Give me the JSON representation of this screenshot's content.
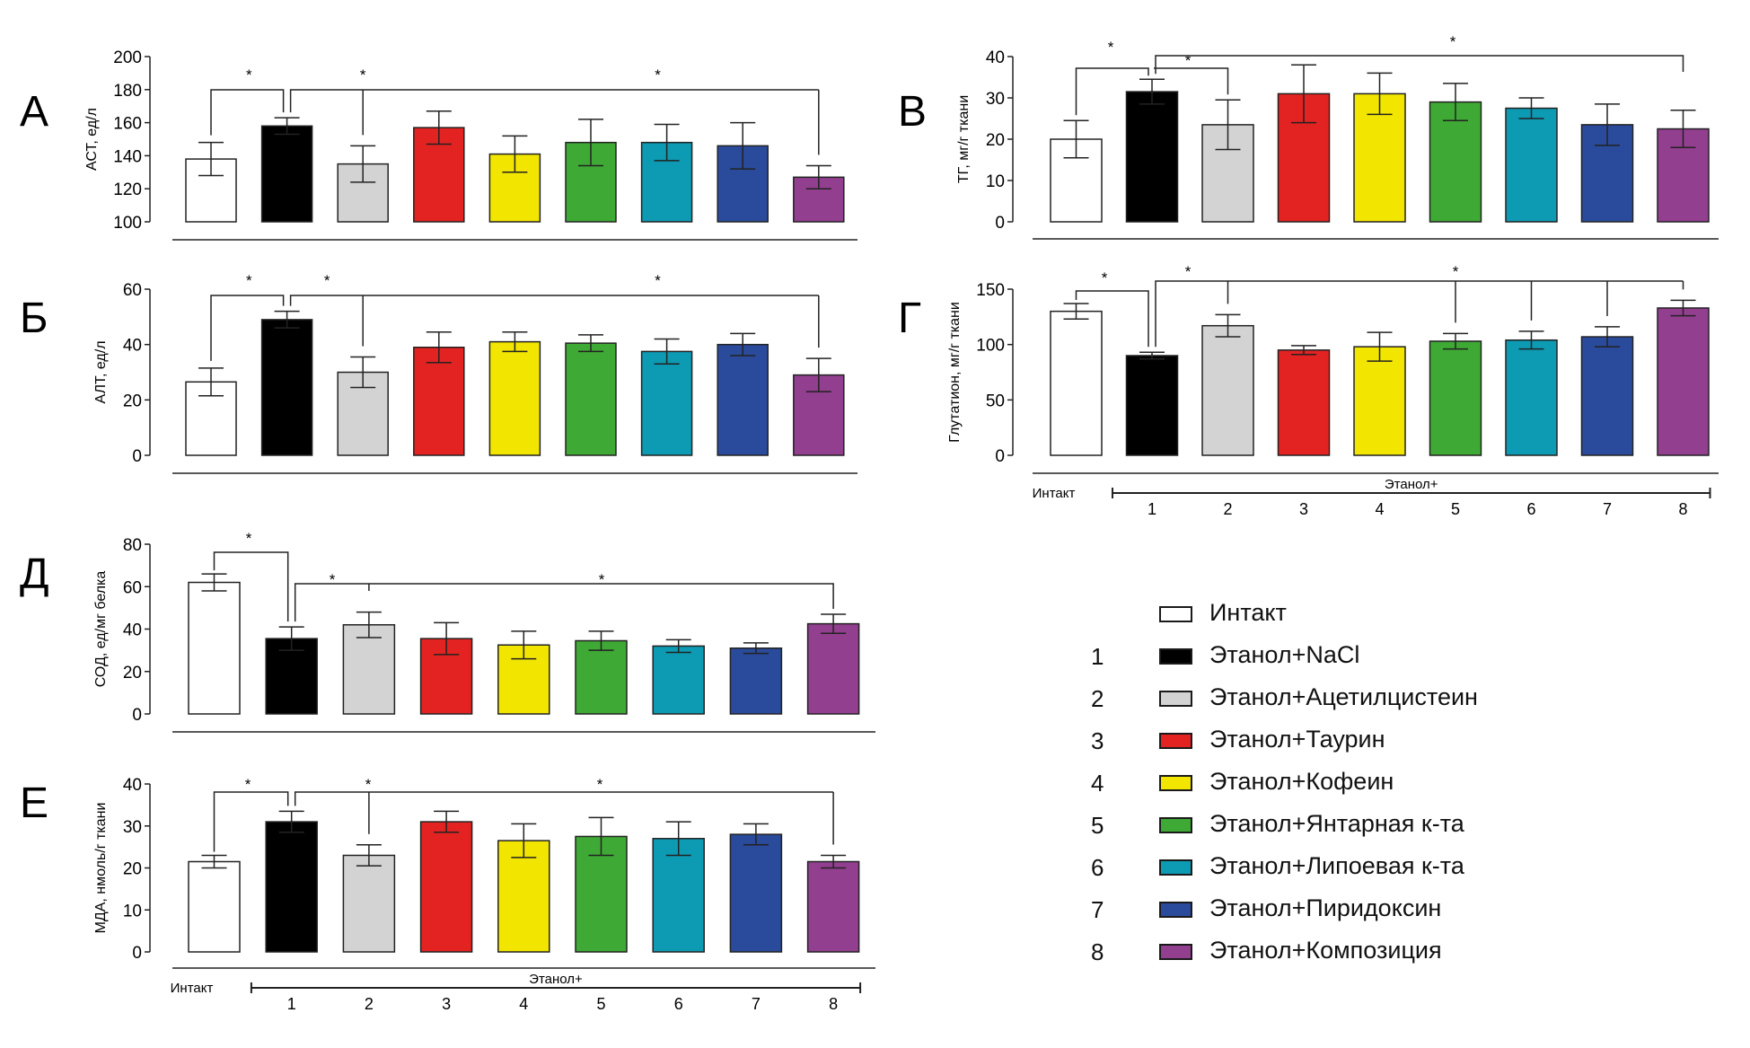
{
  "groups": [
    {
      "id": "intact",
      "num": "",
      "legend": "Интакт",
      "color": "#ffffff"
    },
    {
      "id": "g1",
      "num": "1",
      "legend": "Этанол+NaCl",
      "color": "#000000"
    },
    {
      "id": "g2",
      "num": "2",
      "legend": "Этанол+Ацетилцистеин",
      "color": "#d3d3d3"
    },
    {
      "id": "g3",
      "num": "3",
      "legend": "Этанол+Таурин",
      "color": "#e32321"
    },
    {
      "id": "g4",
      "num": "4",
      "legend": "Этанол+Кофеин",
      "color": "#f2e500"
    },
    {
      "id": "g5",
      "num": "5",
      "legend": "Этанол+Янтарная к-та",
      "color": "#3fa935"
    },
    {
      "id": "g6",
      "num": "6",
      "legend": "Этанол+Липоевая к-та",
      "color": "#0d9ab3"
    },
    {
      "id": "g7",
      "num": "7",
      "legend": "Этанол+Пиридоксин",
      "color": "#2a4b9b"
    },
    {
      "id": "g8",
      "num": "8",
      "legend": "Этанол+Композиция",
      "color": "#923f8f"
    }
  ],
  "xaxis": {
    "intact_label": "Интакт",
    "ethanol_label": "Этанол+",
    "numbers": [
      "1",
      "2",
      "3",
      "4",
      "5",
      "6",
      "7",
      "8"
    ]
  },
  "significance_marker": "*",
  "chart_data": [
    {
      "panel": "А",
      "type": "bar",
      "ylabel": "АСТ, ед/л",
      "ylim": [
        100,
        200
      ],
      "yticks": [
        100,
        120,
        140,
        160,
        180,
        200
      ],
      "values": [
        138,
        158,
        135,
        157,
        141,
        148,
        148,
        146,
        127
      ],
      "errors": [
        10,
        5,
        11,
        10,
        11,
        14,
        11,
        14,
        7
      ],
      "comparisons": "Intact vs 1; 1 vs 2 and 8",
      "show_group_axis": false
    },
    {
      "panel": "В",
      "type": "bar",
      "ylabel": "ТГ, мг/г ткани",
      "ylim": [
        0,
        40
      ],
      "yticks": [
        0,
        10,
        20,
        30,
        40
      ],
      "values": [
        20,
        31.5,
        23.5,
        31,
        31,
        29,
        27.5,
        23.5,
        22.5
      ],
      "errors": [
        4.5,
        3,
        6,
        7,
        5,
        4.5,
        2.5,
        5,
        4.5
      ],
      "comparisons": "Intact vs 1; 1 vs 2; 1 vs 8",
      "show_group_axis": false
    },
    {
      "panel": "Б",
      "type": "bar",
      "ylabel": "АЛТ, ед/л",
      "ylim": [
        0,
        60
      ],
      "yticks": [
        0,
        20,
        40,
        60
      ],
      "values": [
        26.5,
        49,
        30,
        39,
        41,
        40.5,
        37.5,
        40,
        29
      ],
      "errors": [
        5,
        3,
        5.5,
        5.5,
        3.5,
        3,
        4.5,
        4,
        6
      ],
      "comparisons": "Intact vs 1; 1 vs 2 and 8",
      "show_group_axis": false
    },
    {
      "panel": "Г",
      "type": "bar",
      "ylabel": "Глутатион, мг/г ткани",
      "ylim": [
        0,
        150
      ],
      "yticks": [
        0,
        50,
        100,
        150
      ],
      "values": [
        130,
        90,
        117,
        95,
        98,
        103,
        104,
        107,
        133
      ],
      "errors": [
        7,
        3,
        10,
        4,
        13,
        7,
        8,
        9,
        7
      ],
      "comparisons": "Intact vs 1; 1 vs 2, 5, 6, 7, 8",
      "show_group_axis": true
    },
    {
      "panel": "Д",
      "type": "bar",
      "ylabel": "СОД, ед/мг белка",
      "ylim": [
        0,
        80
      ],
      "yticks": [
        0,
        20,
        40,
        60,
        80
      ],
      "values": [
        62,
        35.5,
        42,
        35.5,
        32.5,
        34.5,
        32,
        31,
        42.5
      ],
      "errors": [
        4,
        5.5,
        6,
        7.5,
        6.5,
        4.5,
        3,
        2.5,
        4.5
      ],
      "comparisons": "Intact vs 1; 1 vs 2 and 8",
      "show_group_axis": false
    },
    {
      "panel": "Е",
      "type": "bar",
      "ylabel": "МДА, нмоль/г ткани",
      "ylim": [
        0,
        40
      ],
      "yticks": [
        0,
        10,
        20,
        30,
        40
      ],
      "values": [
        21.5,
        31,
        23,
        31,
        26.5,
        27.5,
        27,
        28,
        21.5
      ],
      "errors": [
        1.5,
        2.5,
        2.5,
        2.5,
        4,
        4.5,
        4,
        2.5,
        1.5
      ],
      "comparisons": "Intact vs 1; 1 vs 2 and 8",
      "show_group_axis": true
    }
  ]
}
